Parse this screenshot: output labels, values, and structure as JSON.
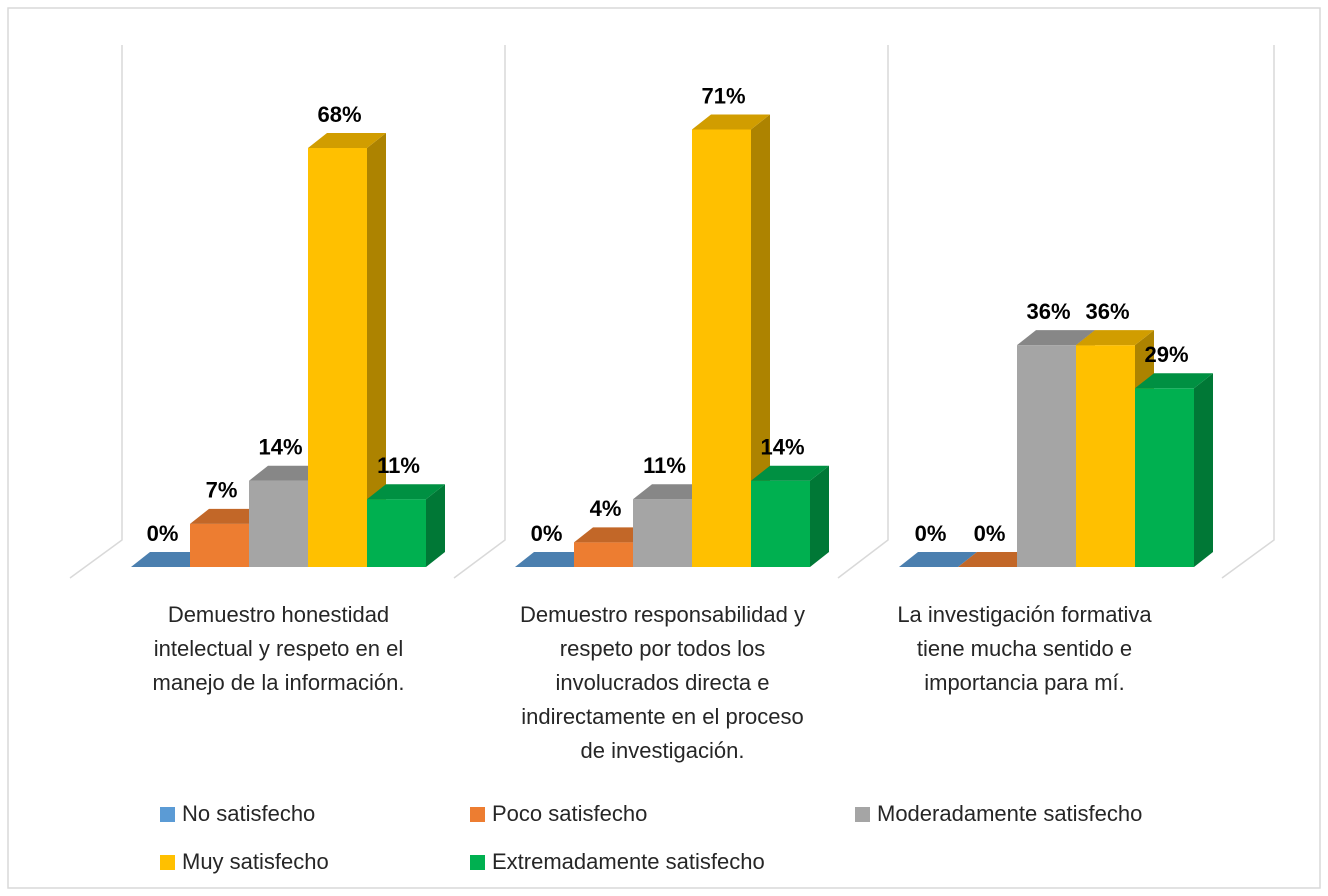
{
  "chart_data": {
    "type": "bar3d",
    "categories": [
      "Demuestro honestidad intelectual y respeto en el manejo de la información.",
      "Demuestro responsabilidad y respeto por todos los involucrados directa e indirectamente en el proceso de investigación.",
      "La investigación formativa tiene mucha sentido e importancia para mí."
    ],
    "series": [
      {
        "name": "No satisfecho",
        "color": "#5b9bd5",
        "values": [
          0,
          0,
          0
        ],
        "value_labels": [
          "0%",
          "0%",
          "0%"
        ]
      },
      {
        "name": "Poco satisfecho",
        "color": "#ed7d31",
        "values": [
          7,
          4,
          0
        ],
        "value_labels": [
          "7%",
          "4%",
          "0%"
        ]
      },
      {
        "name": "Moderadamente satisfecho",
        "color": "#a5a5a5",
        "values": [
          14,
          11,
          36
        ],
        "value_labels": [
          "14%",
          "11%",
          "36%"
        ]
      },
      {
        "name": "Muy satisfecho",
        "color": "#ffc000",
        "values": [
          68,
          71,
          36
        ],
        "value_labels": [
          "68%",
          "71%",
          "36%"
        ]
      },
      {
        "name": "Extremadamente satisfecho",
        "color": "#00b050",
        "values": [
          11,
          14,
          29
        ],
        "value_labels": [
          "11%",
          "14%",
          "29%"
        ]
      }
    ],
    "ylim": [
      0,
      80
    ]
  }
}
